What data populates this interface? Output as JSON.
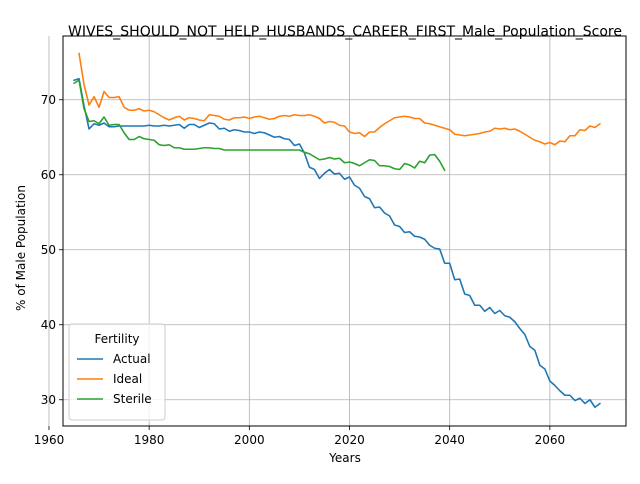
{
  "chart_data": {
    "type": "line",
    "title": "WIVES_SHOULD_NOT_HELP_HUSBANDS_CAREER_FIRST_Male_Population_Score",
    "xlabel": "Years",
    "ylabel": "% of Male Population",
    "xlim": [
      1962.8,
      2075.2
    ],
    "ylim": [
      26.5,
      78.5
    ],
    "xticks": [
      1960,
      1980,
      2000,
      2020,
      2040,
      2060
    ],
    "yticks": [
      30,
      40,
      50,
      60,
      70
    ],
    "grid": true,
    "legend": {
      "title": "Fertility",
      "placement": "lower-left"
    },
    "series": [
      {
        "name": "Actual",
        "color": "#1f77b4",
        "x": [
          1965,
          1966,
          1967,
          1968,
          1969,
          1970,
          1971,
          1972,
          1973,
          1974,
          1975,
          1976,
          1977,
          1978,
          1979,
          1980,
          1981,
          1982,
          1983,
          1984,
          1985,
          1986,
          1987,
          1988,
          1989,
          1990,
          1991,
          1992,
          1993,
          1994,
          1995,
          1996,
          1997,
          1998,
          1999,
          2000,
          2001,
          2002,
          2003,
          2004,
          2005,
          2006,
          2007,
          2008,
          2009,
          2010,
          2011,
          2012,
          2013,
          2014,
          2015,
          2016,
          2017,
          2018,
          2019,
          2020,
          2021,
          2022,
          2023,
          2024,
          2025,
          2026,
          2027,
          2028,
          2029,
          2030,
          2031,
          2032,
          2033,
          2034,
          2035,
          2036,
          2037,
          2038,
          2039,
          2040,
          2041,
          2042,
          2043,
          2044,
          2045,
          2046,
          2047,
          2048,
          2049,
          2050,
          2051,
          2052,
          2053,
          2054,
          2055,
          2056,
          2057,
          2058,
          2059,
          2060,
          2061,
          2062,
          2063,
          2064,
          2065,
          2066,
          2067,
          2068,
          2069,
          2070
        ],
        "values": [
          72.6,
          72.8,
          69.2,
          66.1,
          66.8,
          66.6,
          66.9,
          66.4,
          66.4,
          66.5,
          66.5,
          66.5,
          66.5,
          66.5,
          66.5,
          66.6,
          66.5,
          66.5,
          66.6,
          66.5,
          66.6,
          66.7,
          66.2,
          66.7,
          66.7,
          66.3,
          66.6,
          66.9,
          66.8,
          66.1,
          66.2,
          65.8,
          66.0,
          65.9,
          65.7,
          65.7,
          65.5,
          65.7,
          65.6,
          65.3,
          65.0,
          65.1,
          64.8,
          64.7,
          63.9,
          64.1,
          62.9,
          61.0,
          60.7,
          59.5,
          60.2,
          60.7,
          60.1,
          60.2,
          59.4,
          59.7,
          58.6,
          58.2,
          57.1,
          56.8,
          55.6,
          55.7,
          54.9,
          54.5,
          53.3,
          53.1,
          52.3,
          52.4,
          51.8,
          51.7,
          51.4,
          50.6,
          50.2,
          50.1,
          48.2,
          48.2,
          46.0,
          46.1,
          44.1,
          43.9,
          42.6,
          42.6,
          41.8,
          42.3,
          41.5,
          41.9,
          41.2,
          41.0,
          40.4,
          39.5,
          38.7,
          37.1,
          36.6,
          34.6,
          34.1,
          32.5,
          31.9,
          31.2,
          30.6,
          30.6,
          29.9,
          30.2,
          29.5,
          30.0,
          29.0,
          29.5
        ]
      },
      {
        "name": "Ideal",
        "color": "#ff7f0e",
        "x": [
          1966,
          1967,
          1968,
          1969,
          1970,
          1971,
          1972,
          1973,
          1974,
          1975,
          1976,
          1977,
          1978,
          1979,
          1980,
          1981,
          1982,
          1983,
          1984,
          1985,
          1986,
          1987,
          1988,
          1989,
          1990,
          1991,
          1992,
          1993,
          1994,
          1995,
          1996,
          1997,
          1998,
          1999,
          2000,
          2001,
          2002,
          2003,
          2004,
          2005,
          2006,
          2007,
          2008,
          2009,
          2010,
          2011,
          2012,
          2013,
          2014,
          2015,
          2016,
          2017,
          2018,
          2019,
          2020,
          2021,
          2022,
          2023,
          2024,
          2025,
          2026,
          2027,
          2028,
          2029,
          2030,
          2031,
          2032,
          2033,
          2034,
          2035,
          2036,
          2037,
          2038,
          2039,
          2040,
          2041,
          2042,
          2043,
          2044,
          2045,
          2046,
          2047,
          2048,
          2049,
          2050,
          2051,
          2052,
          2053,
          2054,
          2055,
          2056,
          2057,
          2058,
          2059,
          2060,
          2061,
          2062,
          2063,
          2064,
          2065,
          2066,
          2067,
          2068,
          2069,
          2070
        ],
        "values": [
          76.2,
          72.0,
          69.3,
          70.4,
          69.0,
          71.1,
          70.3,
          70.3,
          70.4,
          69.0,
          68.6,
          68.6,
          68.8,
          68.5,
          68.6,
          68.4,
          68.0,
          67.6,
          67.3,
          67.6,
          67.8,
          67.3,
          67.6,
          67.5,
          67.3,
          67.2,
          68.0,
          67.9,
          67.8,
          67.4,
          67.3,
          67.6,
          67.6,
          67.7,
          67.5,
          67.7,
          67.8,
          67.6,
          67.4,
          67.5,
          67.8,
          67.9,
          67.8,
          68.0,
          67.9,
          67.9,
          68.0,
          67.8,
          67.5,
          66.9,
          67.1,
          67.0,
          66.6,
          66.5,
          65.7,
          65.5,
          65.6,
          65.1,
          65.7,
          65.7,
          66.3,
          66.8,
          67.2,
          67.6,
          67.7,
          67.8,
          67.7,
          67.5,
          67.5,
          66.9,
          66.8,
          66.6,
          66.4,
          66.2,
          66.0,
          65.4,
          65.3,
          65.2,
          65.3,
          65.4,
          65.5,
          65.7,
          65.8,
          66.2,
          66.1,
          66.2,
          66.0,
          66.1,
          65.8,
          65.4,
          65.0,
          64.6,
          64.4,
          64.1,
          64.3,
          64.0,
          64.5,
          64.4,
          65.2,
          65.2,
          66.0,
          65.9,
          66.5,
          66.3,
          66.8
        ]
      },
      {
        "name": "Sterile",
        "color": "#2ca02c",
        "x": [
          1965,
          1966,
          1967,
          1968,
          1969,
          1970,
          1971,
          1972,
          1973,
          1974,
          1975,
          1976,
          1977,
          1978,
          1979,
          1980,
          1981,
          1982,
          1983,
          1984,
          1985,
          1986,
          1987,
          1988,
          1989,
          1990,
          1991,
          1992,
          1993,
          1994,
          1995,
          1996,
          1997,
          1998,
          1999,
          2000,
          2001,
          2002,
          2003,
          2004,
          2005,
          2006,
          2007,
          2008,
          2009,
          2010,
          2011,
          2012,
          2013,
          2014,
          2015,
          2016,
          2017,
          2018,
          2019,
          2020,
          2021,
          2022,
          2023,
          2024,
          2025,
          2026,
          2027,
          2028,
          2029,
          2030,
          2031,
          2032,
          2033,
          2034,
          2035,
          2036,
          2037,
          2038,
          2039,
          2040
        ],
        "values": [
          72.2,
          72.6,
          68.8,
          67.1,
          67.2,
          66.8,
          67.7,
          66.6,
          66.7,
          66.7,
          65.6,
          64.7,
          64.7,
          65.1,
          64.8,
          64.7,
          64.6,
          64.0,
          63.9,
          64.0,
          63.6,
          63.6,
          63.4,
          63.4,
          63.4,
          63.5,
          63.6,
          63.6,
          63.5,
          63.5,
          63.3,
          63.3,
          63.3,
          63.3,
          63.3,
          63.3,
          63.3,
          63.3,
          63.3,
          63.3,
          63.3,
          63.3,
          63.3,
          63.3,
          63.3,
          63.3,
          63.0,
          62.8,
          62.4,
          62.0,
          62.1,
          62.3,
          62.1,
          62.2,
          61.6,
          61.7,
          61.5,
          61.2,
          61.6,
          62.0,
          61.9,
          61.2,
          61.2,
          61.1,
          60.8,
          60.7,
          61.5,
          61.3,
          60.9,
          61.8,
          61.6,
          62.6,
          62.7,
          61.8,
          60.6,
          null
        ]
      }
    ]
  }
}
